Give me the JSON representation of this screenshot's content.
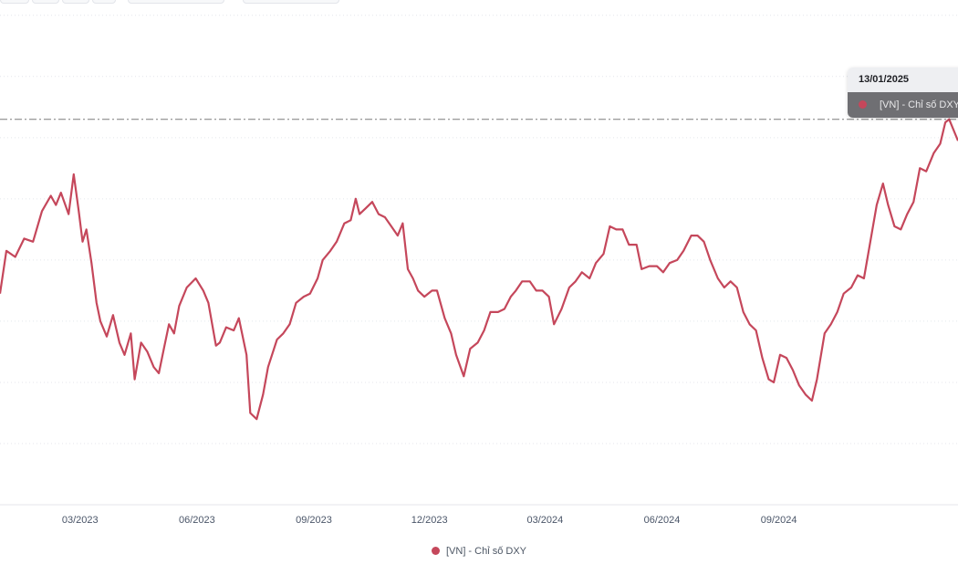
{
  "colors": {
    "series": "#c5475b",
    "grid": "#e4e6eb",
    "axis_text": "#4a5568",
    "crosshair": "#7a7a7a"
  },
  "tooltip": {
    "date": "13/01/2025",
    "series_label": "[VN] - Chỉ số DXY"
  },
  "chart_data": {
    "type": "line",
    "title": "",
    "xlabel": "",
    "ylabel": "",
    "x_ticks": [
      "03/2023",
      "06/2023",
      "09/2023",
      "12/2023",
      "03/2024",
      "06/2024",
      "09/2024"
    ],
    "x_range": [
      "2022-12-28",
      "2025-01-20"
    ],
    "y_range": [
      97.0,
      113.5
    ],
    "y_tick_values": [
      99,
      101,
      103,
      105,
      107,
      109,
      111,
      113
    ],
    "y_tick_labels_visible": false,
    "crosshair_value": 109.6,
    "grid": true,
    "legend_position": "bottom",
    "series": [
      {
        "name": "[VN] - Chỉ số DXY",
        "points": [
          [
            "2022-12-28",
            103.9
          ],
          [
            "2023-01-02",
            105.3
          ],
          [
            "2023-01-09",
            105.1
          ],
          [
            "2023-01-16",
            105.7
          ],
          [
            "2023-01-23",
            105.6
          ],
          [
            "2023-01-30",
            106.6
          ],
          [
            "2023-02-06",
            107.1
          ],
          [
            "2023-02-10",
            106.8
          ],
          [
            "2023-02-14",
            107.2
          ],
          [
            "2023-02-20",
            106.5
          ],
          [
            "2023-02-24",
            107.8
          ],
          [
            "2023-02-28",
            106.6
          ],
          [
            "2023-03-03",
            105.6
          ],
          [
            "2023-03-06",
            106.0
          ],
          [
            "2023-03-10",
            104.9
          ],
          [
            "2023-03-14",
            103.6
          ],
          [
            "2023-03-17",
            103.0
          ],
          [
            "2023-03-22",
            102.5
          ],
          [
            "2023-03-27",
            103.2
          ],
          [
            "2023-04-01",
            102.3
          ],
          [
            "2023-04-05",
            101.9
          ],
          [
            "2023-04-10",
            102.6
          ],
          [
            "2023-04-13",
            101.1
          ],
          [
            "2023-04-18",
            102.3
          ],
          [
            "2023-04-23",
            102.0
          ],
          [
            "2023-04-28",
            101.5
          ],
          [
            "2023-05-02",
            101.3
          ],
          [
            "2023-05-06",
            102.1
          ],
          [
            "2023-05-10",
            102.9
          ],
          [
            "2023-05-14",
            102.6
          ],
          [
            "2023-05-18",
            103.5
          ],
          [
            "2023-05-24",
            104.1
          ],
          [
            "2023-05-31",
            104.4
          ],
          [
            "2023-06-06",
            104.0
          ],
          [
            "2023-06-10",
            103.6
          ],
          [
            "2023-06-16",
            102.2
          ],
          [
            "2023-06-19",
            102.3
          ],
          [
            "2023-06-24",
            102.8
          ],
          [
            "2023-06-30",
            102.7
          ],
          [
            "2023-07-04",
            103.1
          ],
          [
            "2023-07-10",
            101.9
          ],
          [
            "2023-07-13",
            100.0
          ],
          [
            "2023-07-18",
            99.8
          ],
          [
            "2023-07-23",
            100.6
          ],
          [
            "2023-07-27",
            101.5
          ],
          [
            "2023-08-03",
            102.4
          ],
          [
            "2023-08-08",
            102.6
          ],
          [
            "2023-08-13",
            102.9
          ],
          [
            "2023-08-18",
            103.6
          ],
          [
            "2023-08-24",
            103.8
          ],
          [
            "2023-08-29",
            103.9
          ],
          [
            "2023-09-04",
            104.4
          ],
          [
            "2023-09-08",
            105.0
          ],
          [
            "2023-09-14",
            105.3
          ],
          [
            "2023-09-19",
            105.6
          ],
          [
            "2023-09-25",
            106.2
          ],
          [
            "2023-09-30",
            106.3
          ],
          [
            "2023-10-04",
            107.0
          ],
          [
            "2023-10-07",
            106.5
          ],
          [
            "2023-10-12",
            106.7
          ],
          [
            "2023-10-17",
            106.9
          ],
          [
            "2023-10-22",
            106.5
          ],
          [
            "2023-10-27",
            106.4
          ],
          [
            "2023-11-01",
            106.1
          ],
          [
            "2023-11-06",
            105.8
          ],
          [
            "2023-11-10",
            106.2
          ],
          [
            "2023-11-14",
            104.7
          ],
          [
            "2023-11-18",
            104.4
          ],
          [
            "2023-11-22",
            104.0
          ],
          [
            "2023-11-27",
            103.8
          ],
          [
            "2023-12-03",
            104.0
          ],
          [
            "2023-12-07",
            104.0
          ],
          [
            "2023-12-13",
            103.1
          ],
          [
            "2023-12-18",
            102.6
          ],
          [
            "2023-12-22",
            101.9
          ],
          [
            "2023-12-28",
            101.2
          ],
          [
            "2024-01-02",
            102.1
          ],
          [
            "2024-01-08",
            102.3
          ],
          [
            "2024-01-13",
            102.7
          ],
          [
            "2024-01-18",
            103.3
          ],
          [
            "2024-01-24",
            103.3
          ],
          [
            "2024-01-29",
            103.4
          ],
          [
            "2024-02-03",
            103.8
          ],
          [
            "2024-02-07",
            104.0
          ],
          [
            "2024-02-12",
            104.3
          ],
          [
            "2024-02-18",
            104.3
          ],
          [
            "2024-02-23",
            104.0
          ],
          [
            "2024-02-28",
            104.0
          ],
          [
            "2024-03-04",
            103.8
          ],
          [
            "2024-03-08",
            102.9
          ],
          [
            "2024-03-14",
            103.4
          ],
          [
            "2024-03-20",
            104.1
          ],
          [
            "2024-03-25",
            104.3
          ],
          [
            "2024-03-30",
            104.6
          ],
          [
            "2024-04-05",
            104.4
          ],
          [
            "2024-04-10",
            104.9
          ],
          [
            "2024-04-16",
            105.2
          ],
          [
            "2024-04-21",
            106.1
          ],
          [
            "2024-04-26",
            106.0
          ],
          [
            "2024-05-01",
            106.0
          ],
          [
            "2024-05-06",
            105.5
          ],
          [
            "2024-05-12",
            105.5
          ],
          [
            "2024-05-16",
            104.7
          ],
          [
            "2024-05-22",
            104.8
          ],
          [
            "2024-05-28",
            104.8
          ],
          [
            "2024-06-02",
            104.6
          ],
          [
            "2024-06-07",
            104.9
          ],
          [
            "2024-06-13",
            105.0
          ],
          [
            "2024-06-18",
            105.3
          ],
          [
            "2024-06-24",
            105.8
          ],
          [
            "2024-06-29",
            105.8
          ],
          [
            "2024-07-04",
            105.6
          ],
          [
            "2024-07-09",
            105.0
          ],
          [
            "2024-07-15",
            104.4
          ],
          [
            "2024-07-20",
            104.1
          ],
          [
            "2024-07-25",
            104.3
          ],
          [
            "2024-07-30",
            104.1
          ],
          [
            "2024-08-04",
            103.3
          ],
          [
            "2024-08-09",
            102.9
          ],
          [
            "2024-08-14",
            102.7
          ],
          [
            "2024-08-19",
            101.8
          ],
          [
            "2024-08-24",
            101.1
          ],
          [
            "2024-08-28",
            101.0
          ],
          [
            "2024-09-02",
            101.9
          ],
          [
            "2024-09-07",
            101.8
          ],
          [
            "2024-09-12",
            101.4
          ],
          [
            "2024-09-17",
            100.9
          ],
          [
            "2024-09-22",
            100.6
          ],
          [
            "2024-09-27",
            100.4
          ],
          [
            "2024-10-01",
            101.1
          ],
          [
            "2024-10-07",
            102.6
          ],
          [
            "2024-10-12",
            102.9
          ],
          [
            "2024-10-17",
            103.3
          ],
          [
            "2024-10-22",
            103.9
          ],
          [
            "2024-10-28",
            104.1
          ],
          [
            "2024-11-02",
            104.5
          ],
          [
            "2024-11-07",
            104.4
          ],
          [
            "2024-11-12",
            105.6
          ],
          [
            "2024-11-17",
            106.8
          ],
          [
            "2024-11-22",
            107.5
          ],
          [
            "2024-11-26",
            106.8
          ],
          [
            "2024-12-01",
            106.1
          ],
          [
            "2024-12-06",
            106.0
          ],
          [
            "2024-12-11",
            106.5
          ],
          [
            "2024-12-16",
            106.9
          ],
          [
            "2024-12-21",
            108.0
          ],
          [
            "2024-12-26",
            107.9
          ],
          [
            "2025-01-01",
            108.5
          ],
          [
            "2025-01-06",
            108.8
          ],
          [
            "2025-01-10",
            109.5
          ],
          [
            "2025-01-13",
            109.6
          ],
          [
            "2025-01-20",
            108.9
          ]
        ]
      }
    ]
  }
}
